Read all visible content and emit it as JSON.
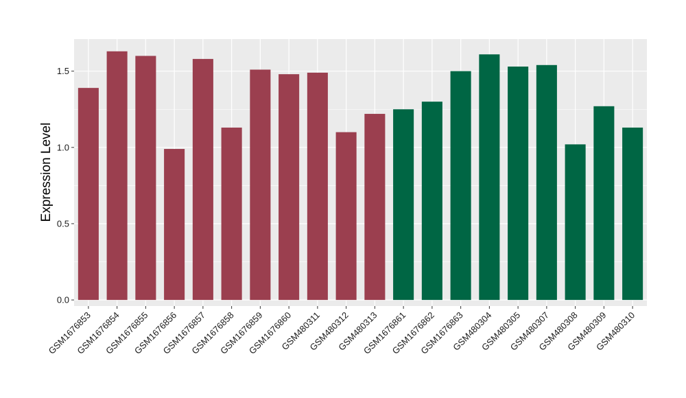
{
  "chart_data": {
    "type": "bar",
    "title": "",
    "xlabel": "",
    "ylabel": "Expression Level",
    "ylim": [
      -0.04,
      1.71
    ],
    "yticks": [
      "0.0",
      "0.5",
      "1.0",
      "1.5"
    ],
    "categories": [
      "GSM1676853",
      "GSM1676854",
      "GSM1676855",
      "GSM1676856",
      "GSM1676857",
      "GSM1676858",
      "GSM1676859",
      "GSM1676860",
      "GSM480311",
      "GSM480312",
      "GSM480313",
      "GSM1676861",
      "GSM1676862",
      "GSM1676863",
      "GSM480304",
      "GSM480305",
      "GSM480307",
      "GSM480308",
      "GSM480309",
      "GSM480310"
    ],
    "values": [
      1.39,
      1.63,
      1.6,
      0.99,
      1.58,
      1.13,
      1.51,
      1.48,
      1.49,
      1.1,
      1.22,
      1.25,
      1.3,
      1.5,
      1.61,
      1.53,
      1.54,
      1.02,
      1.27,
      1.13
    ],
    "bar_colors": [
      "#9b3f4f",
      "#9b3f4f",
      "#9b3f4f",
      "#9b3f4f",
      "#9b3f4f",
      "#9b3f4f",
      "#9b3f4f",
      "#9b3f4f",
      "#9b3f4f",
      "#9b3f4f",
      "#9b3f4f",
      "#006644",
      "#006644",
      "#006644",
      "#006644",
      "#006644",
      "#006644",
      "#006644",
      "#006644",
      "#006644"
    ],
    "grid": true,
    "legend": "none",
    "panel_background": "#ebebeb",
    "grid_color": "#ffffff"
  }
}
